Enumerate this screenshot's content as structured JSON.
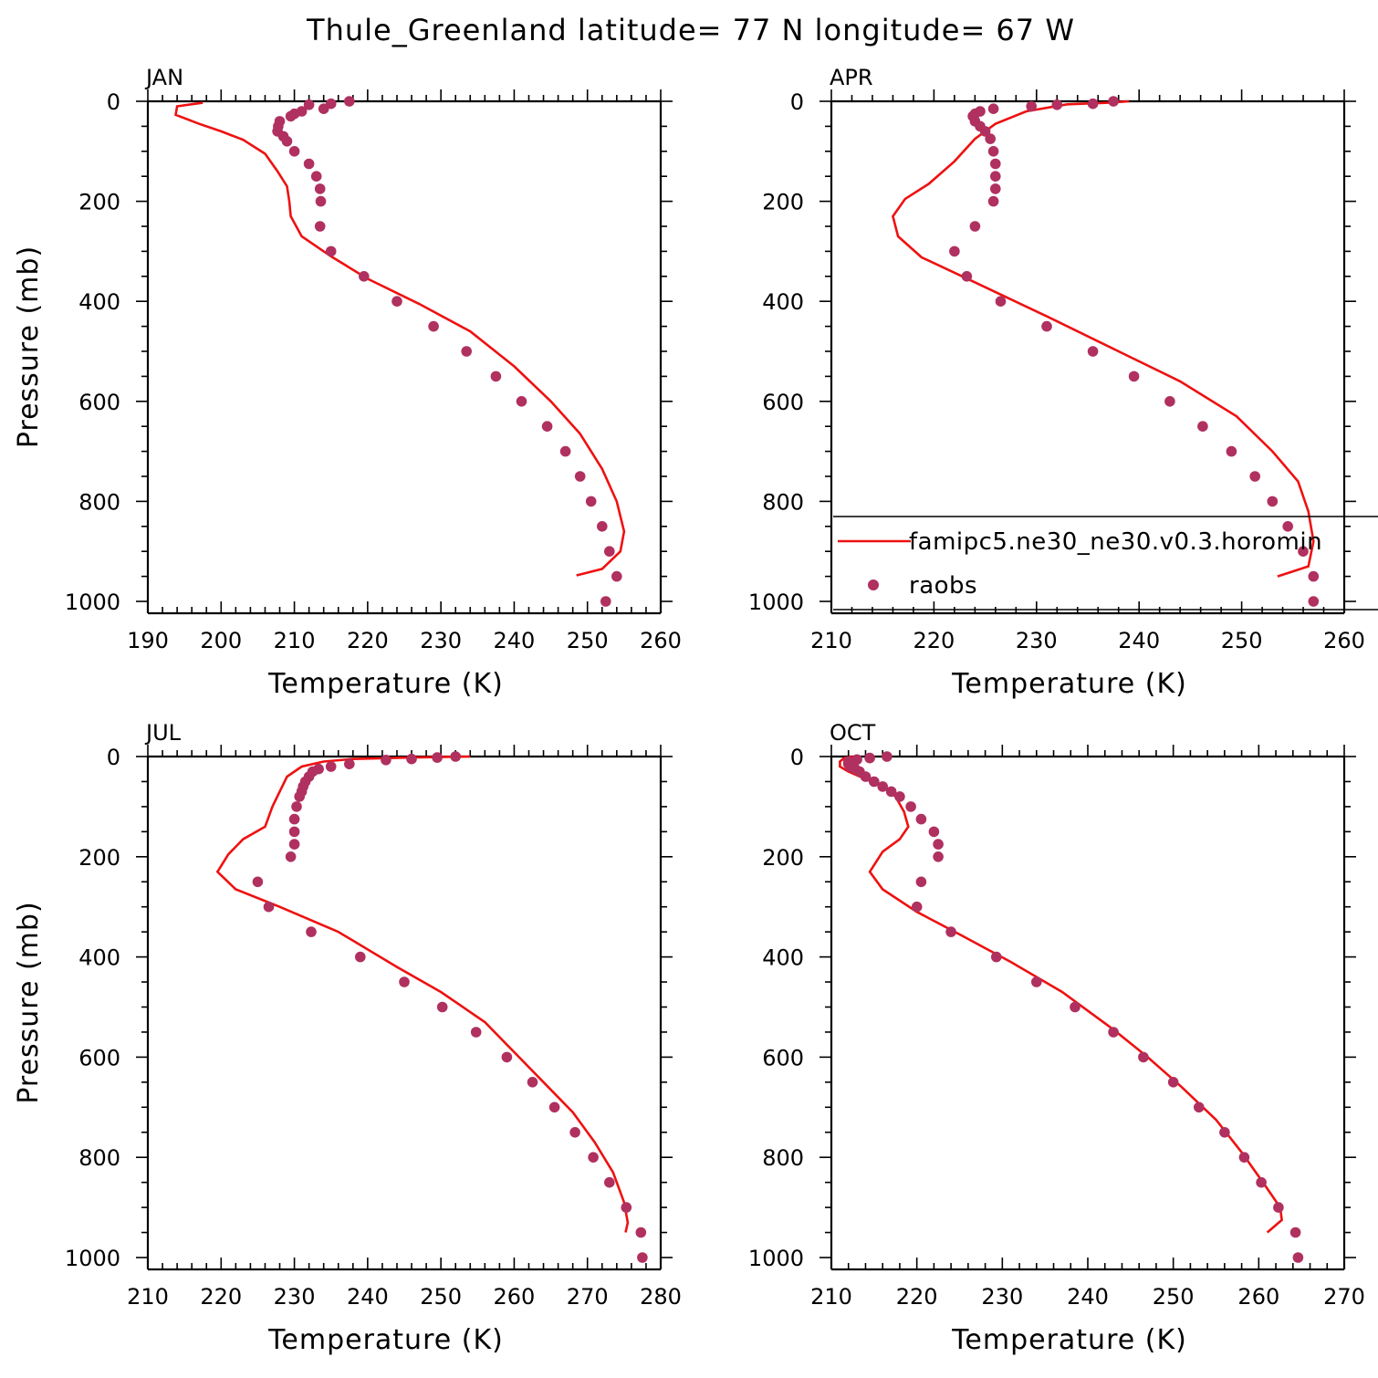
{
  "title": "Thule_Greenland  latitude= 77 N longitude= 67 W",
  "colors": {
    "model": "#ee1111",
    "obs": "#b03060"
  },
  "legend": {
    "placement": "lower-right of APR panel",
    "model_label": "famipc5.ne30_ne30.v0.3.horomin",
    "obs_label": "raobs"
  },
  "chart_data": [
    {
      "type": "line",
      "panel": "JAN",
      "xlabel": "Temperature (K)",
      "ylabel": "Pressure (mb)",
      "xlim": [
        190,
        260
      ],
      "xticks": [
        190,
        200,
        210,
        220,
        230,
        240,
        250,
        260
      ],
      "ylim": [
        1000,
        0
      ],
      "yticks": [
        0,
        200,
        400,
        600,
        800,
        1000
      ],
      "series": [
        {
          "name": "famipc5.ne30_ne30.v0.3.horomin",
          "kind": "line",
          "points": [
            [
              197.5,
              3
            ],
            [
              194,
              10
            ],
            [
              193.8,
              27
            ],
            [
              197,
              45
            ],
            [
              200,
              60
            ],
            [
              203,
              77
            ],
            [
              206,
              105
            ],
            [
              207.7,
              140
            ],
            [
              209,
              170
            ],
            [
              209.3,
              200
            ],
            [
              209.5,
              230
            ],
            [
              211,
              270
            ],
            [
              215,
              310
            ],
            [
              220,
              355
            ],
            [
              227,
              405
            ],
            [
              234,
              460
            ],
            [
              240,
              530
            ],
            [
              245,
              600
            ],
            [
              249,
              665
            ],
            [
              252,
              735
            ],
            [
              254,
              800
            ],
            [
              255,
              860
            ],
            [
              254.5,
              900
            ],
            [
              252,
              935
            ],
            [
              248.5,
              948
            ]
          ]
        },
        {
          "name": "raobs",
          "kind": "scatter",
          "points": [
            [
              217.5,
              0
            ],
            [
              215,
              5
            ],
            [
              212,
              7
            ],
            [
              214,
              15
            ],
            [
              211,
              20
            ],
            [
              210,
              25
            ],
            [
              209.5,
              30
            ],
            [
              208,
              40
            ],
            [
              207.8,
              50
            ],
            [
              207.7,
              60
            ],
            [
              208.5,
              70
            ],
            [
              209,
              80
            ],
            [
              210,
              100
            ],
            [
              212,
              125
            ],
            [
              213,
              150
            ],
            [
              213.5,
              175
            ],
            [
              213.6,
              200
            ],
            [
              213.5,
              250
            ],
            [
              215,
              300
            ],
            [
              219.5,
              350
            ],
            [
              224,
              400
            ],
            [
              229,
              450
            ],
            [
              233.5,
              500
            ],
            [
              237.5,
              550
            ],
            [
              241,
              600
            ],
            [
              244.5,
              650
            ],
            [
              247,
              700
            ],
            [
              249,
              750
            ],
            [
              250.5,
              800
            ],
            [
              252,
              850
            ],
            [
              253,
              900
            ],
            [
              254,
              950
            ],
            [
              252.5,
              1000
            ]
          ]
        }
      ]
    },
    {
      "type": "line",
      "panel": "APR",
      "xlabel": "Temperature (K)",
      "ylabel": "",
      "xlim": [
        210,
        260
      ],
      "xticks": [
        210,
        220,
        230,
        240,
        250,
        260
      ],
      "ylim": [
        1000,
        0
      ],
      "yticks": [
        0,
        200,
        400,
        600,
        800,
        1000
      ],
      "series": [
        {
          "name": "famipc5.ne30_ne30.v0.3.horomin",
          "kind": "line",
          "points": [
            [
              239,
              0
            ],
            [
              237,
              3
            ],
            [
              233,
              6
            ],
            [
              229,
              20
            ],
            [
              226,
              45
            ],
            [
              224,
              75
            ],
            [
              222,
              120
            ],
            [
              219.5,
              165
            ],
            [
              217.2,
              195
            ],
            [
              216,
              230
            ],
            [
              216.5,
              270
            ],
            [
              218.8,
              312
            ],
            [
              224,
              362
            ],
            [
              231,
              430
            ],
            [
              238,
              500
            ],
            [
              244,
              560
            ],
            [
              249.5,
              630
            ],
            [
              253,
              700
            ],
            [
              255.5,
              760
            ],
            [
              256.5,
              820
            ],
            [
              257,
              880
            ],
            [
              256.5,
              930
            ],
            [
              253.5,
              950
            ]
          ]
        },
        {
          "name": "raobs",
          "kind": "scatter",
          "points": [
            [
              237.5,
              0
            ],
            [
              235.5,
              5
            ],
            [
              232,
              7
            ],
            [
              229.5,
              10
            ],
            [
              225.8,
              15
            ],
            [
              224.5,
              20
            ],
            [
              224,
              25
            ],
            [
              223.8,
              30
            ],
            [
              224,
              40
            ],
            [
              224.5,
              50
            ],
            [
              225,
              60
            ],
            [
              225.5,
              75
            ],
            [
              225.8,
              100
            ],
            [
              226,
              125
            ],
            [
              226,
              150
            ],
            [
              226,
              175
            ],
            [
              225.8,
              200
            ],
            [
              224,
              250
            ],
            [
              222,
              300
            ],
            [
              223.2,
              350
            ],
            [
              226.5,
              400
            ],
            [
              231,
              450
            ],
            [
              235.5,
              500
            ],
            [
              239.5,
              550
            ],
            [
              243,
              600
            ],
            [
              246.2,
              650
            ],
            [
              249,
              700
            ],
            [
              251.3,
              750
            ],
            [
              253,
              800
            ],
            [
              254.5,
              850
            ],
            [
              256,
              900
            ],
            [
              257,
              950
            ],
            [
              257,
              1000
            ]
          ]
        }
      ]
    },
    {
      "type": "line",
      "panel": "JUL",
      "xlabel": "Temperature (K)",
      "ylabel": "Pressure (mb)",
      "xlim": [
        210,
        280
      ],
      "xticks": [
        210,
        220,
        230,
        240,
        250,
        260,
        270,
        280
      ],
      "ylim": [
        1000,
        0
      ],
      "yticks": [
        0,
        200,
        400,
        600,
        800,
        1000
      ],
      "series": [
        {
          "name": "famipc5.ne30_ne30.v0.3.horomin",
          "kind": "line",
          "points": [
            [
              254,
              0
            ],
            [
              246,
              2
            ],
            [
              238,
              5
            ],
            [
              234,
              10
            ],
            [
              231,
              20
            ],
            [
              229,
              40
            ],
            [
              228,
              70
            ],
            [
              227,
              100
            ],
            [
              226,
              140
            ],
            [
              223,
              165
            ],
            [
              221,
              195
            ],
            [
              219.5,
              230
            ],
            [
              222,
              265
            ],
            [
              228,
              300
            ],
            [
              236,
              350
            ],
            [
              244,
              420
            ],
            [
              250,
              470
            ],
            [
              256,
              530
            ],
            [
              260,
              590
            ],
            [
              264,
              650
            ],
            [
              268,
              710
            ],
            [
              271,
              770
            ],
            [
              273.5,
              830
            ],
            [
              275,
              890
            ],
            [
              275.5,
              930
            ],
            [
              275.2,
              950
            ]
          ]
        },
        {
          "name": "raobs",
          "kind": "scatter",
          "points": [
            [
              252,
              0
            ],
            [
              249.5,
              2
            ],
            [
              246,
              5
            ],
            [
              242.5,
              7
            ],
            [
              237.5,
              15
            ],
            [
              235,
              20
            ],
            [
              233.3,
              25
            ],
            [
              232.5,
              30
            ],
            [
              232,
              40
            ],
            [
              231.5,
              50
            ],
            [
              231.2,
              60
            ],
            [
              231,
              70
            ],
            [
              230.7,
              80
            ],
            [
              230.3,
              100
            ],
            [
              230,
              125
            ],
            [
              230,
              150
            ],
            [
              230,
              175
            ],
            [
              229.5,
              200
            ],
            [
              225,
              250
            ],
            [
              226.5,
              300
            ],
            [
              232.3,
              350
            ],
            [
              239,
              400
            ],
            [
              245,
              450
            ],
            [
              250.2,
              500
            ],
            [
              254.8,
              550
            ],
            [
              259,
              600
            ],
            [
              262.5,
              650
            ],
            [
              265.5,
              700
            ],
            [
              268.3,
              750
            ],
            [
              270.8,
              800
            ],
            [
              273,
              850
            ],
            [
              275.3,
              900
            ],
            [
              277.3,
              950
            ],
            [
              277.5,
              1000
            ]
          ]
        }
      ]
    },
    {
      "type": "line",
      "panel": "OCT",
      "xlabel": "Temperature (K)",
      "ylabel": "",
      "xlim": [
        210,
        270
      ],
      "xticks": [
        210,
        220,
        230,
        240,
        250,
        260,
        270
      ],
      "ylim": [
        1000,
        0
      ],
      "yticks": [
        0,
        200,
        400,
        600,
        800,
        1000
      ],
      "series": [
        {
          "name": "famipc5.ne30_ne30.v0.3.horomin",
          "kind": "line",
          "points": [
            [
              212.5,
              0
            ],
            [
              211.5,
              3
            ],
            [
              211,
              10
            ],
            [
              211,
              20
            ],
            [
              212,
              30
            ],
            [
              214,
              45
            ],
            [
              216,
              60
            ],
            [
              217.5,
              80
            ],
            [
              218.5,
              110
            ],
            [
              219,
              140
            ],
            [
              218,
              165
            ],
            [
              216,
              190
            ],
            [
              214.5,
              230
            ],
            [
              216,
              265
            ],
            [
              220,
              310
            ],
            [
              225,
              355
            ],
            [
              231,
              410
            ],
            [
              237,
              470
            ],
            [
              243,
              545
            ],
            [
              247,
              600
            ],
            [
              251,
              660
            ],
            [
              255,
              725
            ],
            [
              258,
              790
            ],
            [
              260.5,
              850
            ],
            [
              262.5,
              900
            ],
            [
              262.7,
              925
            ],
            [
              261,
              950
            ]
          ]
        },
        {
          "name": "raobs",
          "kind": "scatter",
          "points": [
            [
              216.5,
              0
            ],
            [
              214.5,
              3
            ],
            [
              213,
              6
            ],
            [
              212,
              10
            ],
            [
              212,
              15
            ],
            [
              212.2,
              20
            ],
            [
              212.8,
              25
            ],
            [
              213.3,
              30
            ],
            [
              214,
              40
            ],
            [
              215,
              50
            ],
            [
              216,
              60
            ],
            [
              217,
              70
            ],
            [
              218,
              80
            ],
            [
              219.3,
              100
            ],
            [
              220.5,
              125
            ],
            [
              222,
              150
            ],
            [
              222.5,
              175
            ],
            [
              222.5,
              200
            ],
            [
              220.5,
              250
            ],
            [
              220,
              300
            ],
            [
              224,
              350
            ],
            [
              229.3,
              400
            ],
            [
              234,
              450
            ],
            [
              238.5,
              500
            ],
            [
              243,
              550
            ],
            [
              246.5,
              600
            ],
            [
              250,
              650
            ],
            [
              253,
              700
            ],
            [
              256,
              750
            ],
            [
              258.3,
              800
            ],
            [
              260.3,
              850
            ],
            [
              262.3,
              900
            ],
            [
              264.3,
              950
            ],
            [
              264.6,
              1000
            ]
          ]
        }
      ]
    }
  ]
}
